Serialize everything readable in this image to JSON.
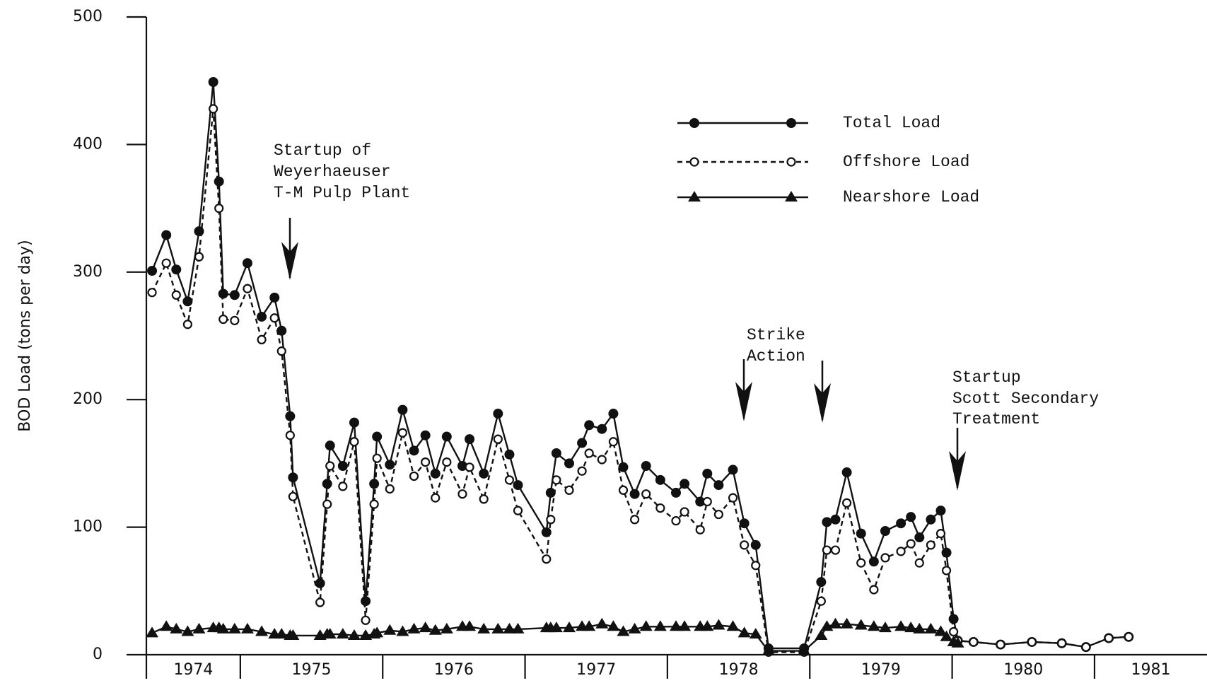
{
  "chart_data": {
    "type": "line",
    "y_label": "BOD Load (tons per day)",
    "xlim": [
      1974.34,
      1981.79
    ],
    "xticks": [
      1974,
      1975,
      1976,
      1977,
      1978,
      1979,
      1980,
      1981
    ],
    "ylim": [
      0,
      500
    ],
    "yticks": [
      0,
      100,
      200,
      300,
      400,
      500
    ],
    "x": [
      1974.38,
      1974.48,
      1974.55,
      1974.63,
      1974.71,
      1974.81,
      1974.85,
      1974.88,
      1974.96,
      1975.05,
      1975.15,
      1975.24,
      1975.29,
      1975.35,
      1975.37,
      1975.56,
      1975.61,
      1975.63,
      1975.72,
      1975.8,
      1975.88,
      1975.94,
      1975.96,
      1976.05,
      1976.14,
      1976.22,
      1976.3,
      1976.37,
      1976.45,
      1976.56,
      1976.61,
      1976.71,
      1976.81,
      1976.89,
      1976.95,
      1977.15,
      1977.18,
      1977.22,
      1977.31,
      1977.4,
      1977.45,
      1977.54,
      1977.62,
      1977.69,
      1977.77,
      1977.85,
      1977.95,
      1978.06,
      1978.12,
      1978.23,
      1978.28,
      1978.36,
      1978.46,
      1978.54,
      1978.62,
      1978.71,
      1978.96,
      1979.08,
      1979.12,
      1979.18,
      1979.26,
      1979.36,
      1979.45,
      1979.53,
      1979.64,
      1979.71,
      1979.77,
      1979.85,
      1979.92,
      1979.96,
      1980.01,
      1980.04,
      1980.15,
      1980.34,
      1980.56,
      1980.77,
      1980.94,
      1981.1,
      1981.24
    ],
    "series": [
      {
        "name": "Total Load",
        "color": "#111111",
        "line_style": "solid",
        "marker": "filled-circle",
        "values": [
          301,
          329,
          302,
          277,
          332,
          449,
          371,
          283,
          282,
          307,
          265,
          280,
          254,
          187,
          139,
          56,
          134,
          164,
          148,
          182,
          42,
          134,
          171,
          149,
          192,
          160,
          172,
          142,
          171,
          148,
          169,
          142,
          189,
          157,
          133,
          96,
          127,
          158,
          150,
          166,
          180,
          177,
          189,
          147,
          126,
          148,
          137,
          127,
          134,
          120,
          142,
          133,
          145,
          103,
          86,
          5,
          5,
          57,
          104,
          106,
          143,
          95,
          73,
          97,
          103,
          108,
          92,
          106,
          113,
          80,
          28,
          11,
          10,
          8,
          10,
          9,
          6,
          13,
          14
        ]
      },
      {
        "name": "Offshore Load",
        "color": "#111111",
        "line_style": "dashed",
        "marker": "open-circle",
        "values": [
          284,
          307,
          282,
          259,
          312,
          428,
          350,
          263,
          262,
          287,
          247,
          264,
          238,
          172,
          124,
          41,
          118,
          148,
          132,
          167,
          27,
          118,
          154,
          130,
          174,
          140,
          151,
          123,
          151,
          126,
          147,
          122,
          169,
          137,
          113,
          75,
          106,
          137,
          129,
          144,
          158,
          153,
          167,
          129,
          106,
          126,
          115,
          105,
          112,
          98,
          120,
          110,
          123,
          86,
          70,
          2,
          2,
          42,
          82,
          82,
          119,
          72,
          51,
          76,
          81,
          87,
          72,
          86,
          95,
          66,
          18,
          11,
          10,
          8,
          10,
          9,
          6,
          13,
          14
        ]
      },
      {
        "name": "Nearshore Load",
        "color": "#111111",
        "line_style": "solid",
        "marker": "triangle",
        "values": [
          17,
          22,
          20,
          18,
          20,
          21,
          21,
          20,
          20,
          20,
          18,
          16,
          16,
          15,
          15,
          15,
          16,
          16,
          16,
          15,
          15,
          16,
          17,
          19,
          18,
          20,
          21,
          19,
          20,
          22,
          22,
          20,
          20,
          20,
          20,
          21,
          21,
          21,
          21,
          22,
          22,
          24,
          22,
          18,
          20,
          22,
          22,
          22,
          22,
          22,
          22,
          23,
          22,
          17,
          16,
          3,
          3,
          15,
          22,
          24,
          24,
          23,
          22,
          21,
          22,
          21,
          20,
          20,
          18,
          14,
          10,
          9,
          null,
          null,
          null,
          null,
          null,
          null,
          null
        ]
      }
    ],
    "annotations": [
      {
        "lines": [
          "Startup of",
          "Weyerhaeuser",
          "T-M Pulp Plant"
        ]
      },
      {
        "lines": [
          "Strike",
          "Action"
        ]
      },
      {
        "lines": [
          "Startup",
          "Scott Secondary",
          "Treatment"
        ]
      }
    ]
  }
}
